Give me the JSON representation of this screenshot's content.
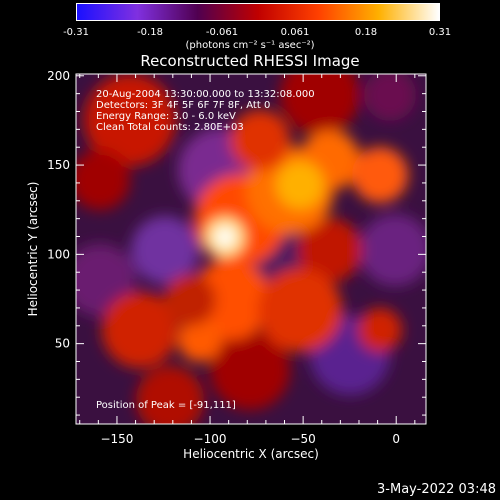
{
  "colorbar": {
    "ticks": [
      "-0.31",
      "-0.18",
      "-0.061",
      "0.061",
      "0.18",
      "0.31"
    ],
    "units": "(photons cm⁻² s⁻¹ asec⁻²)",
    "colors": [
      "#1a10ff",
      "#8030e0",
      "#500050",
      "#c00000",
      "#ff4000",
      "#ffb000",
      "#ffffff"
    ]
  },
  "annotations": {
    "line1": "20-Aug-2004 13:30:00.000 to 13:32:08.000",
    "line2": "Detectors: 3F 4F 5F 6F 7F 8F, Att 0",
    "line3": "Energy Range: 3.0 - 6.0 keV",
    "line4": "Clean    Total counts: 2.80E+03",
    "peak": "Position of Peak = [-91,111]"
  },
  "timestamp": "3-May-2022 03:48",
  "chart_data": {
    "type": "heatmap",
    "title": "Reconstructed RHESSI Image",
    "xlabel": "Heliocentric X (arcsec)",
    "ylabel": "Heliocentric Y (arcsec)",
    "xlim": [
      -172,
      16
    ],
    "ylim": [
      5,
      201
    ],
    "xticks": [
      -150,
      -100,
      -50,
      0
    ],
    "yticks": [
      50,
      100,
      150,
      200
    ],
    "vmin": -0.31,
    "vmax": 0.31,
    "peak_position": [
      -91,
      111
    ]
  }
}
